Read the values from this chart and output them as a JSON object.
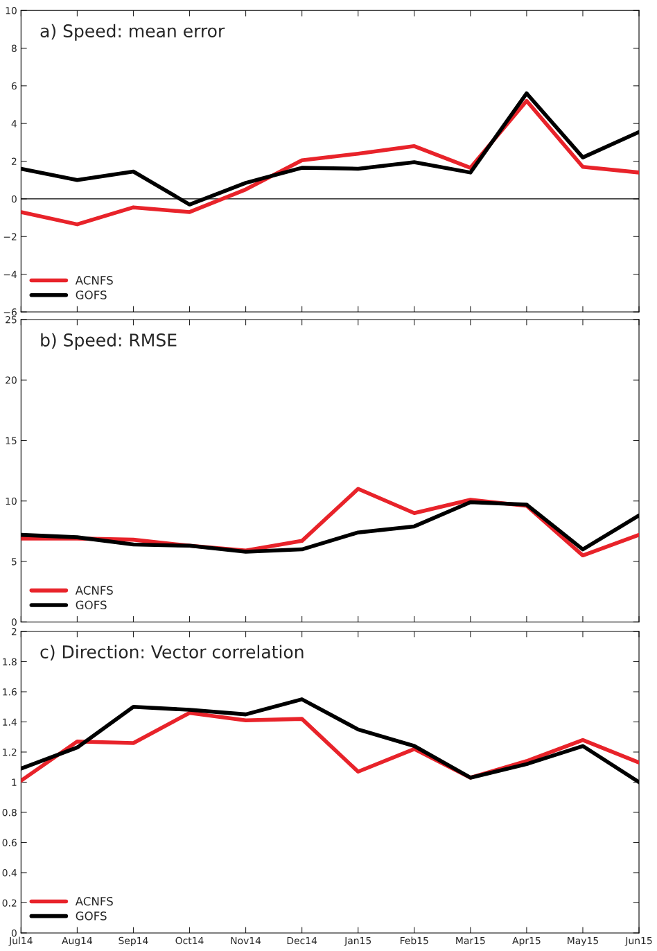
{
  "chart_data": [
    {
      "type": "line",
      "title": "a) Speed: mean error",
      "categories": [
        null,
        null,
        null,
        null,
        null,
        null,
        null,
        null,
        null,
        null,
        null,
        null
      ],
      "series": [
        {
          "name": "ACNFS",
          "color": "#e8232a",
          "values": [
            -0.7,
            -1.35,
            -0.45,
            -0.7,
            0.5,
            2.05,
            2.4,
            2.8,
            1.65,
            5.2,
            1.7,
            1.4
          ]
        },
        {
          "name": "GOFS",
          "color": "#000000",
          "values": [
            1.6,
            1.0,
            1.45,
            -0.3,
            0.85,
            1.65,
            1.6,
            1.95,
            1.4,
            5.6,
            2.2,
            3.55
          ]
        }
      ],
      "ylim": [
        -6,
        10
      ],
      "yticks": [
        {
          "value": -6,
          "label": "−6"
        },
        {
          "value": -4,
          "label": "−4"
        },
        {
          "value": -2,
          "label": "−2"
        },
        0,
        2,
        4,
        6,
        8,
        10
      ],
      "ref_lines": [
        {
          "axis": "y",
          "value": 0,
          "color": "#000000"
        }
      ],
      "tick_labels": "y",
      "legend": "bottom left",
      "grid": false,
      "line_style": "solid"
    },
    {
      "type": "line",
      "title": "b) Speed: RMSE",
      "categories": [
        null,
        null,
        null,
        null,
        null,
        null,
        null,
        null,
        null,
        null,
        null,
        null
      ],
      "series": [
        {
          "name": "ACNFS",
          "color": "#e8232a",
          "values": [
            6.9,
            6.9,
            6.8,
            6.3,
            5.9,
            6.7,
            11.0,
            9.0,
            10.1,
            9.6,
            5.5,
            7.2
          ]
        },
        {
          "name": "GOFS",
          "color": "#000000",
          "values": [
            7.2,
            7.0,
            6.4,
            6.3,
            5.8,
            6.0,
            7.4,
            7.9,
            9.9,
            9.7,
            6.0,
            8.8
          ]
        }
      ],
      "ylim": [
        0,
        25
      ],
      "yticks": [
        0,
        5,
        10,
        15,
        20,
        25
      ],
      "tick_labels": "y",
      "legend": "bottom left",
      "grid": false,
      "line_style": "solid"
    },
    {
      "type": "line",
      "title": "c) Direction: Vector correlation",
      "categories": [
        "Jul14",
        "Aug14",
        "Sep14",
        "Oct14",
        "Nov14",
        "Dec14",
        "Jan15",
        "Feb15",
        "Mar15",
        "Apr15",
        "May15",
        "Jun15"
      ],
      "series": [
        {
          "name": "ACNFS",
          "color": "#e8232a",
          "values": [
            1.01,
            1.27,
            1.26,
            1.46,
            1.41,
            1.42,
            1.07,
            1.22,
            1.03,
            1.14,
            1.28,
            1.13
          ]
        },
        {
          "name": "GOFS",
          "color": "#000000",
          "values": [
            1.09,
            1.23,
            1.5,
            1.48,
            1.45,
            1.55,
            1.35,
            1.24,
            1.03,
            1.12,
            1.24,
            1.0
          ]
        }
      ],
      "ylim": [
        0,
        2
      ],
      "yticks": [
        0,
        0.2,
        0.4,
        0.6,
        0.8,
        1,
        1.2,
        1.4,
        1.6,
        1.8,
        2
      ],
      "legend": "bottom left",
      "grid": false,
      "line_style": "solid"
    }
  ]
}
